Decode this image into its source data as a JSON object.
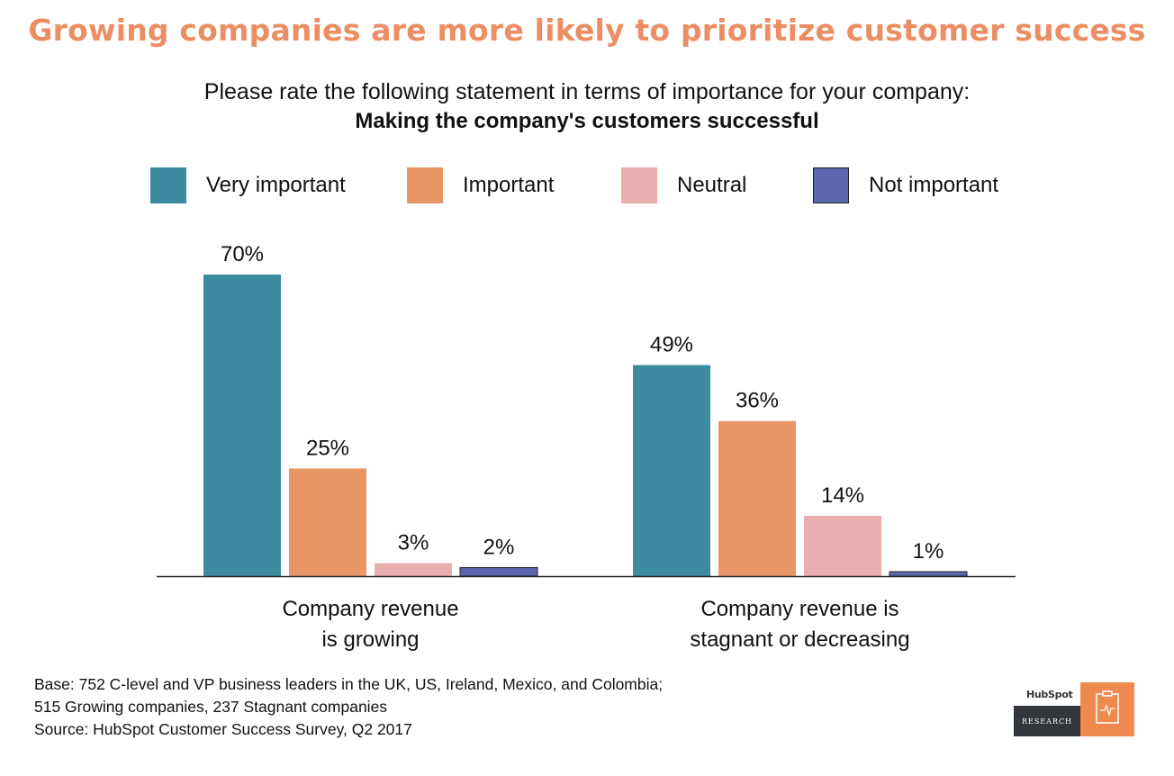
{
  "header": {
    "title": "Growing companies are more likely to prioritize customer success",
    "subtitle": "Please rate the following statement in terms of importance for your company:",
    "question": "Making the company's customers successful"
  },
  "legend": [
    {
      "label": "Very important",
      "color": "#3d8ba0"
    },
    {
      "label": "Important",
      "color": "#e99667"
    },
    {
      "label": "Neutral",
      "color": "#ebaeae"
    },
    {
      "label": "Not important",
      "color": "#5c66ae"
    }
  ],
  "chart_data": {
    "type": "bar",
    "categories": [
      [
        "Company revenue",
        "is growing"
      ],
      [
        "Company revenue is",
        "stagnant or decreasing"
      ]
    ],
    "series": [
      {
        "name": "Very important",
        "values": [
          70,
          49
        ],
        "labels": [
          "70%",
          "49%"
        ],
        "color": "#3d8ba0"
      },
      {
        "name": "Important",
        "values": [
          25,
          36
        ],
        "labels": [
          "25%",
          "36%"
        ],
        "color": "#e99667"
      },
      {
        "name": "Neutral",
        "values": [
          3,
          14
        ],
        "labels": [
          "3%",
          "14%"
        ],
        "color": "#ebaeae"
      },
      {
        "name": "Not important",
        "values": [
          2,
          1
        ],
        "labels": [
          "2%",
          "1%"
        ],
        "color": "#5c66ae"
      }
    ],
    "ylim": [
      0,
      70
    ],
    "grid": false,
    "legend_position": "top"
  },
  "footnote": {
    "lines": [
      "Base: 752 C-level and VP business leaders in the UK, US, Ireland, Mexico, and Colombia;",
      "515 Growing companies, 237 Stagnant companies",
      "Source: HubSpot Customer Success Survey, Q2 2017"
    ]
  },
  "logo": {
    "brand": "HubSpot",
    "tagline": "RESEARCH",
    "icon": "clipboard-pulse-icon"
  }
}
